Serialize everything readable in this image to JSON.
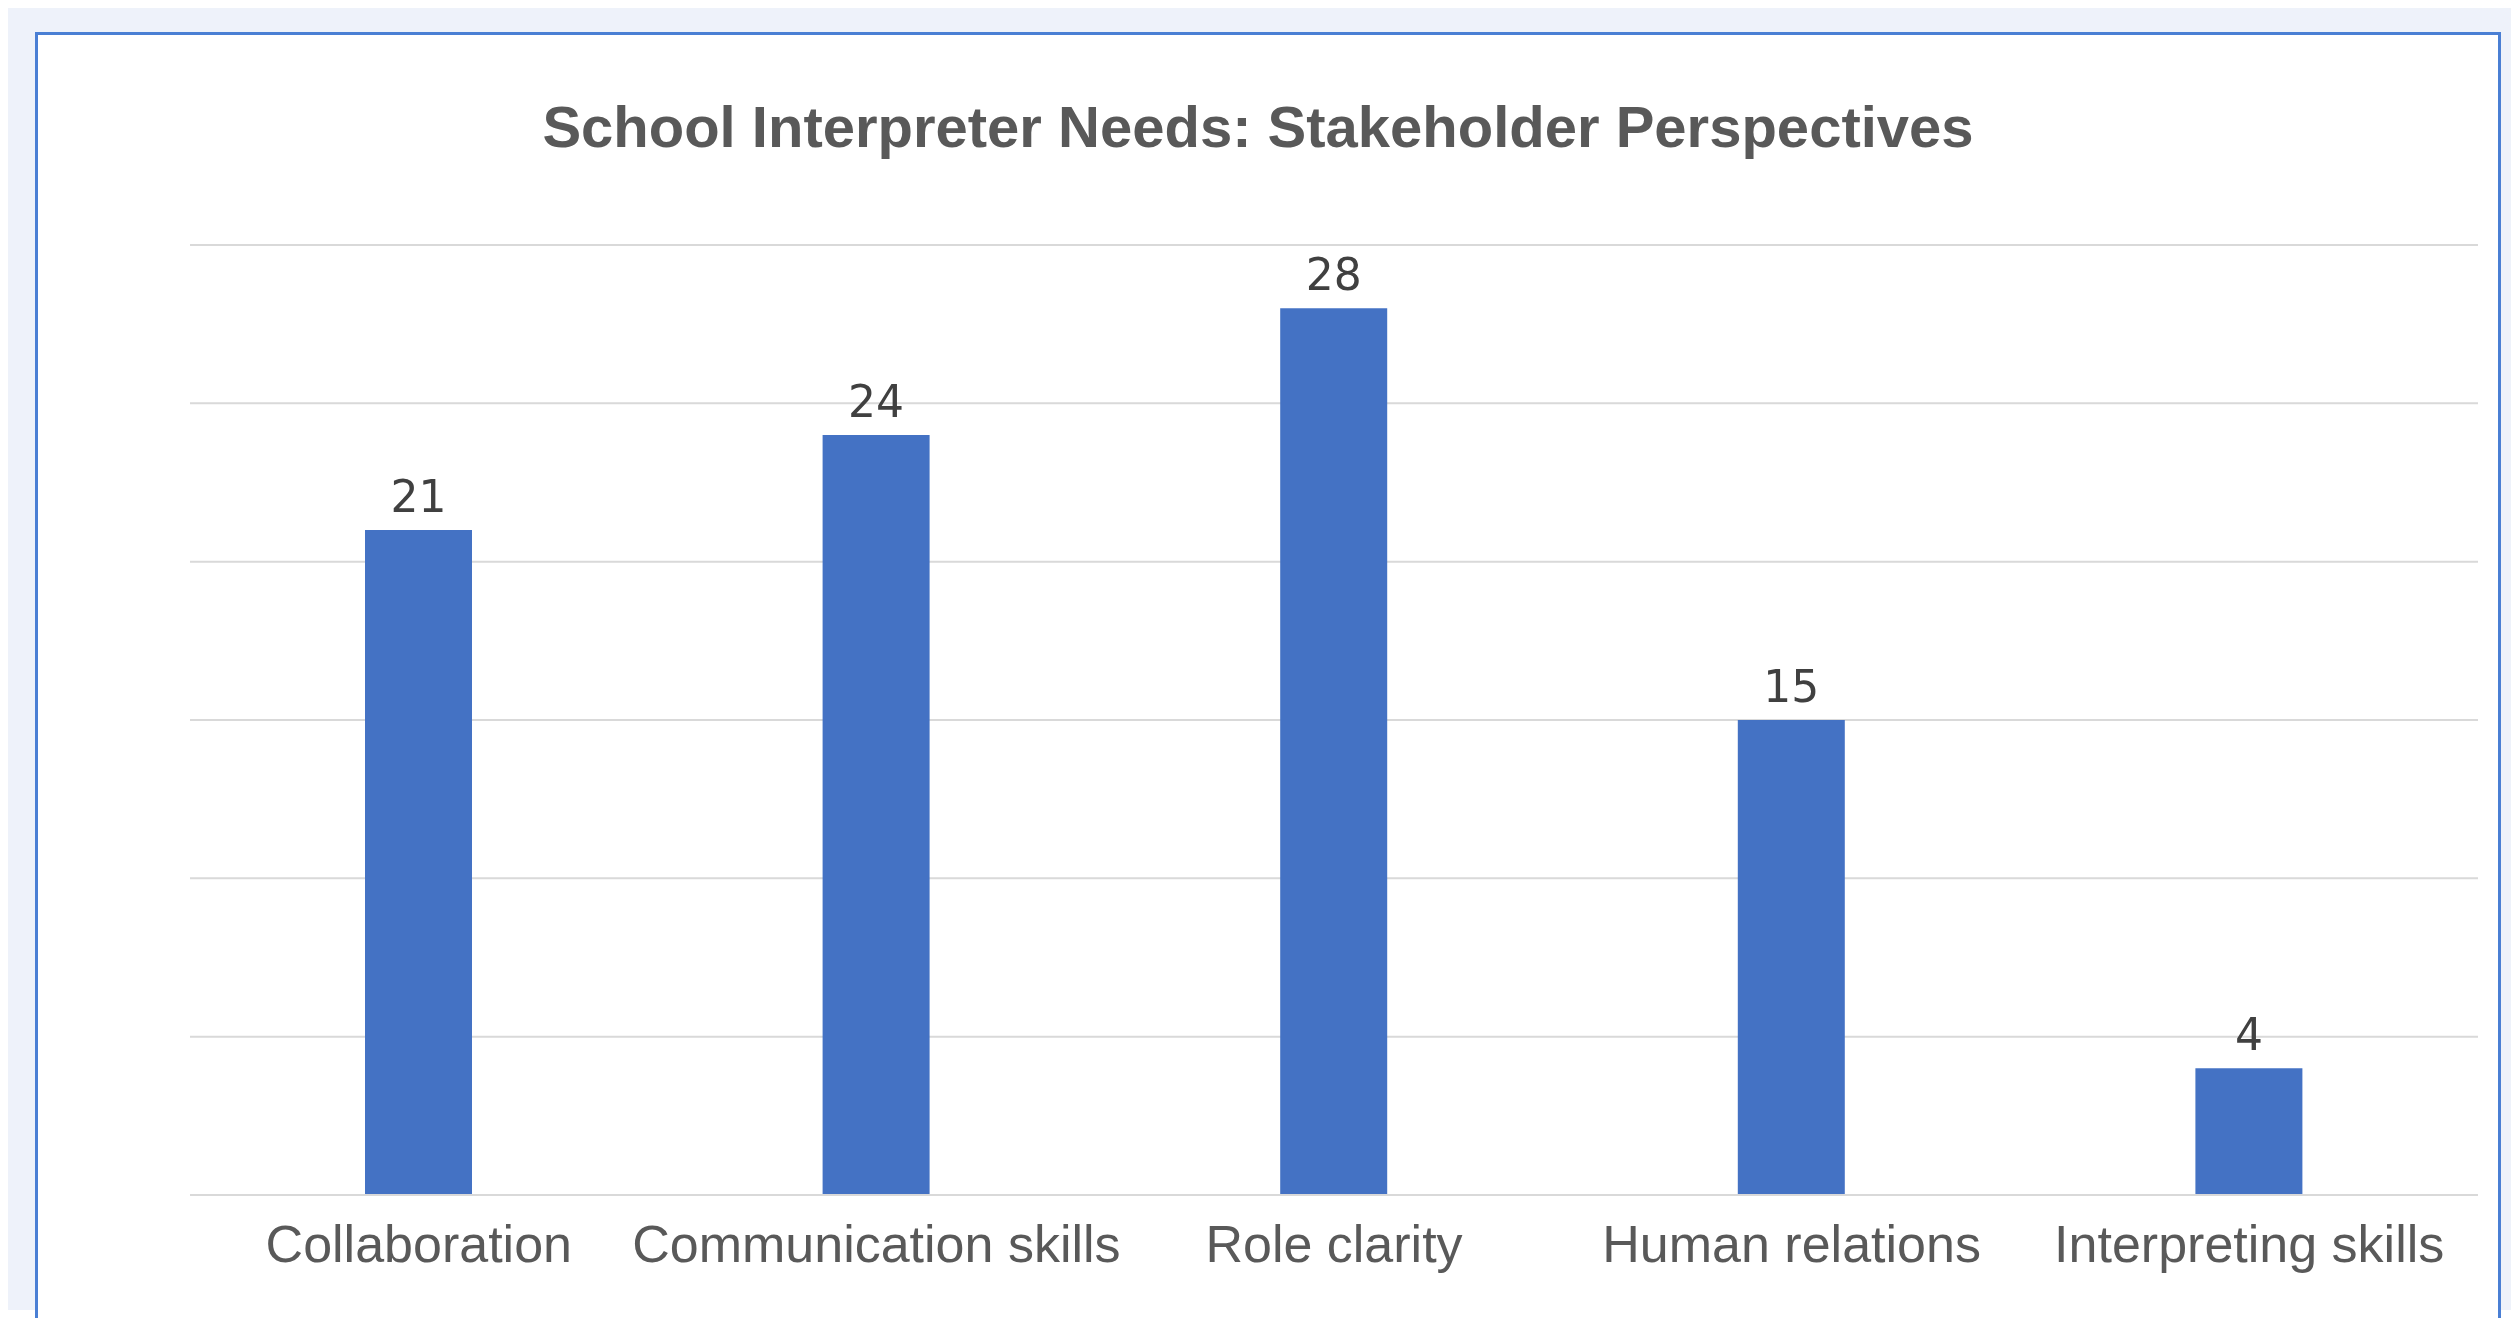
{
  "chart_data": {
    "type": "bar",
    "title": "School Interpreter Needs: Stakeholder Perspectives",
    "categories": [
      "Collaboration",
      "Communication skills",
      "Role clarity",
      "Human relations",
      "Interpreting skills"
    ],
    "values": [
      21,
      24,
      28,
      15,
      4
    ],
    "color": "#4472c4",
    "ylim": [
      0,
      30
    ],
    "yticks": [
      {
        "value": 0,
        "label": null
      },
      {
        "value": 5,
        "label": null
      },
      {
        "value": 10,
        "label": null
      },
      {
        "value": 15,
        "label": null
      },
      {
        "value": 20,
        "label": null
      },
      {
        "value": 25,
        "label": null
      },
      {
        "value": 30,
        "label": null
      }
    ],
    "tick_labels": "x",
    "grid": "y",
    "data_labels": true,
    "legend": false
  }
}
